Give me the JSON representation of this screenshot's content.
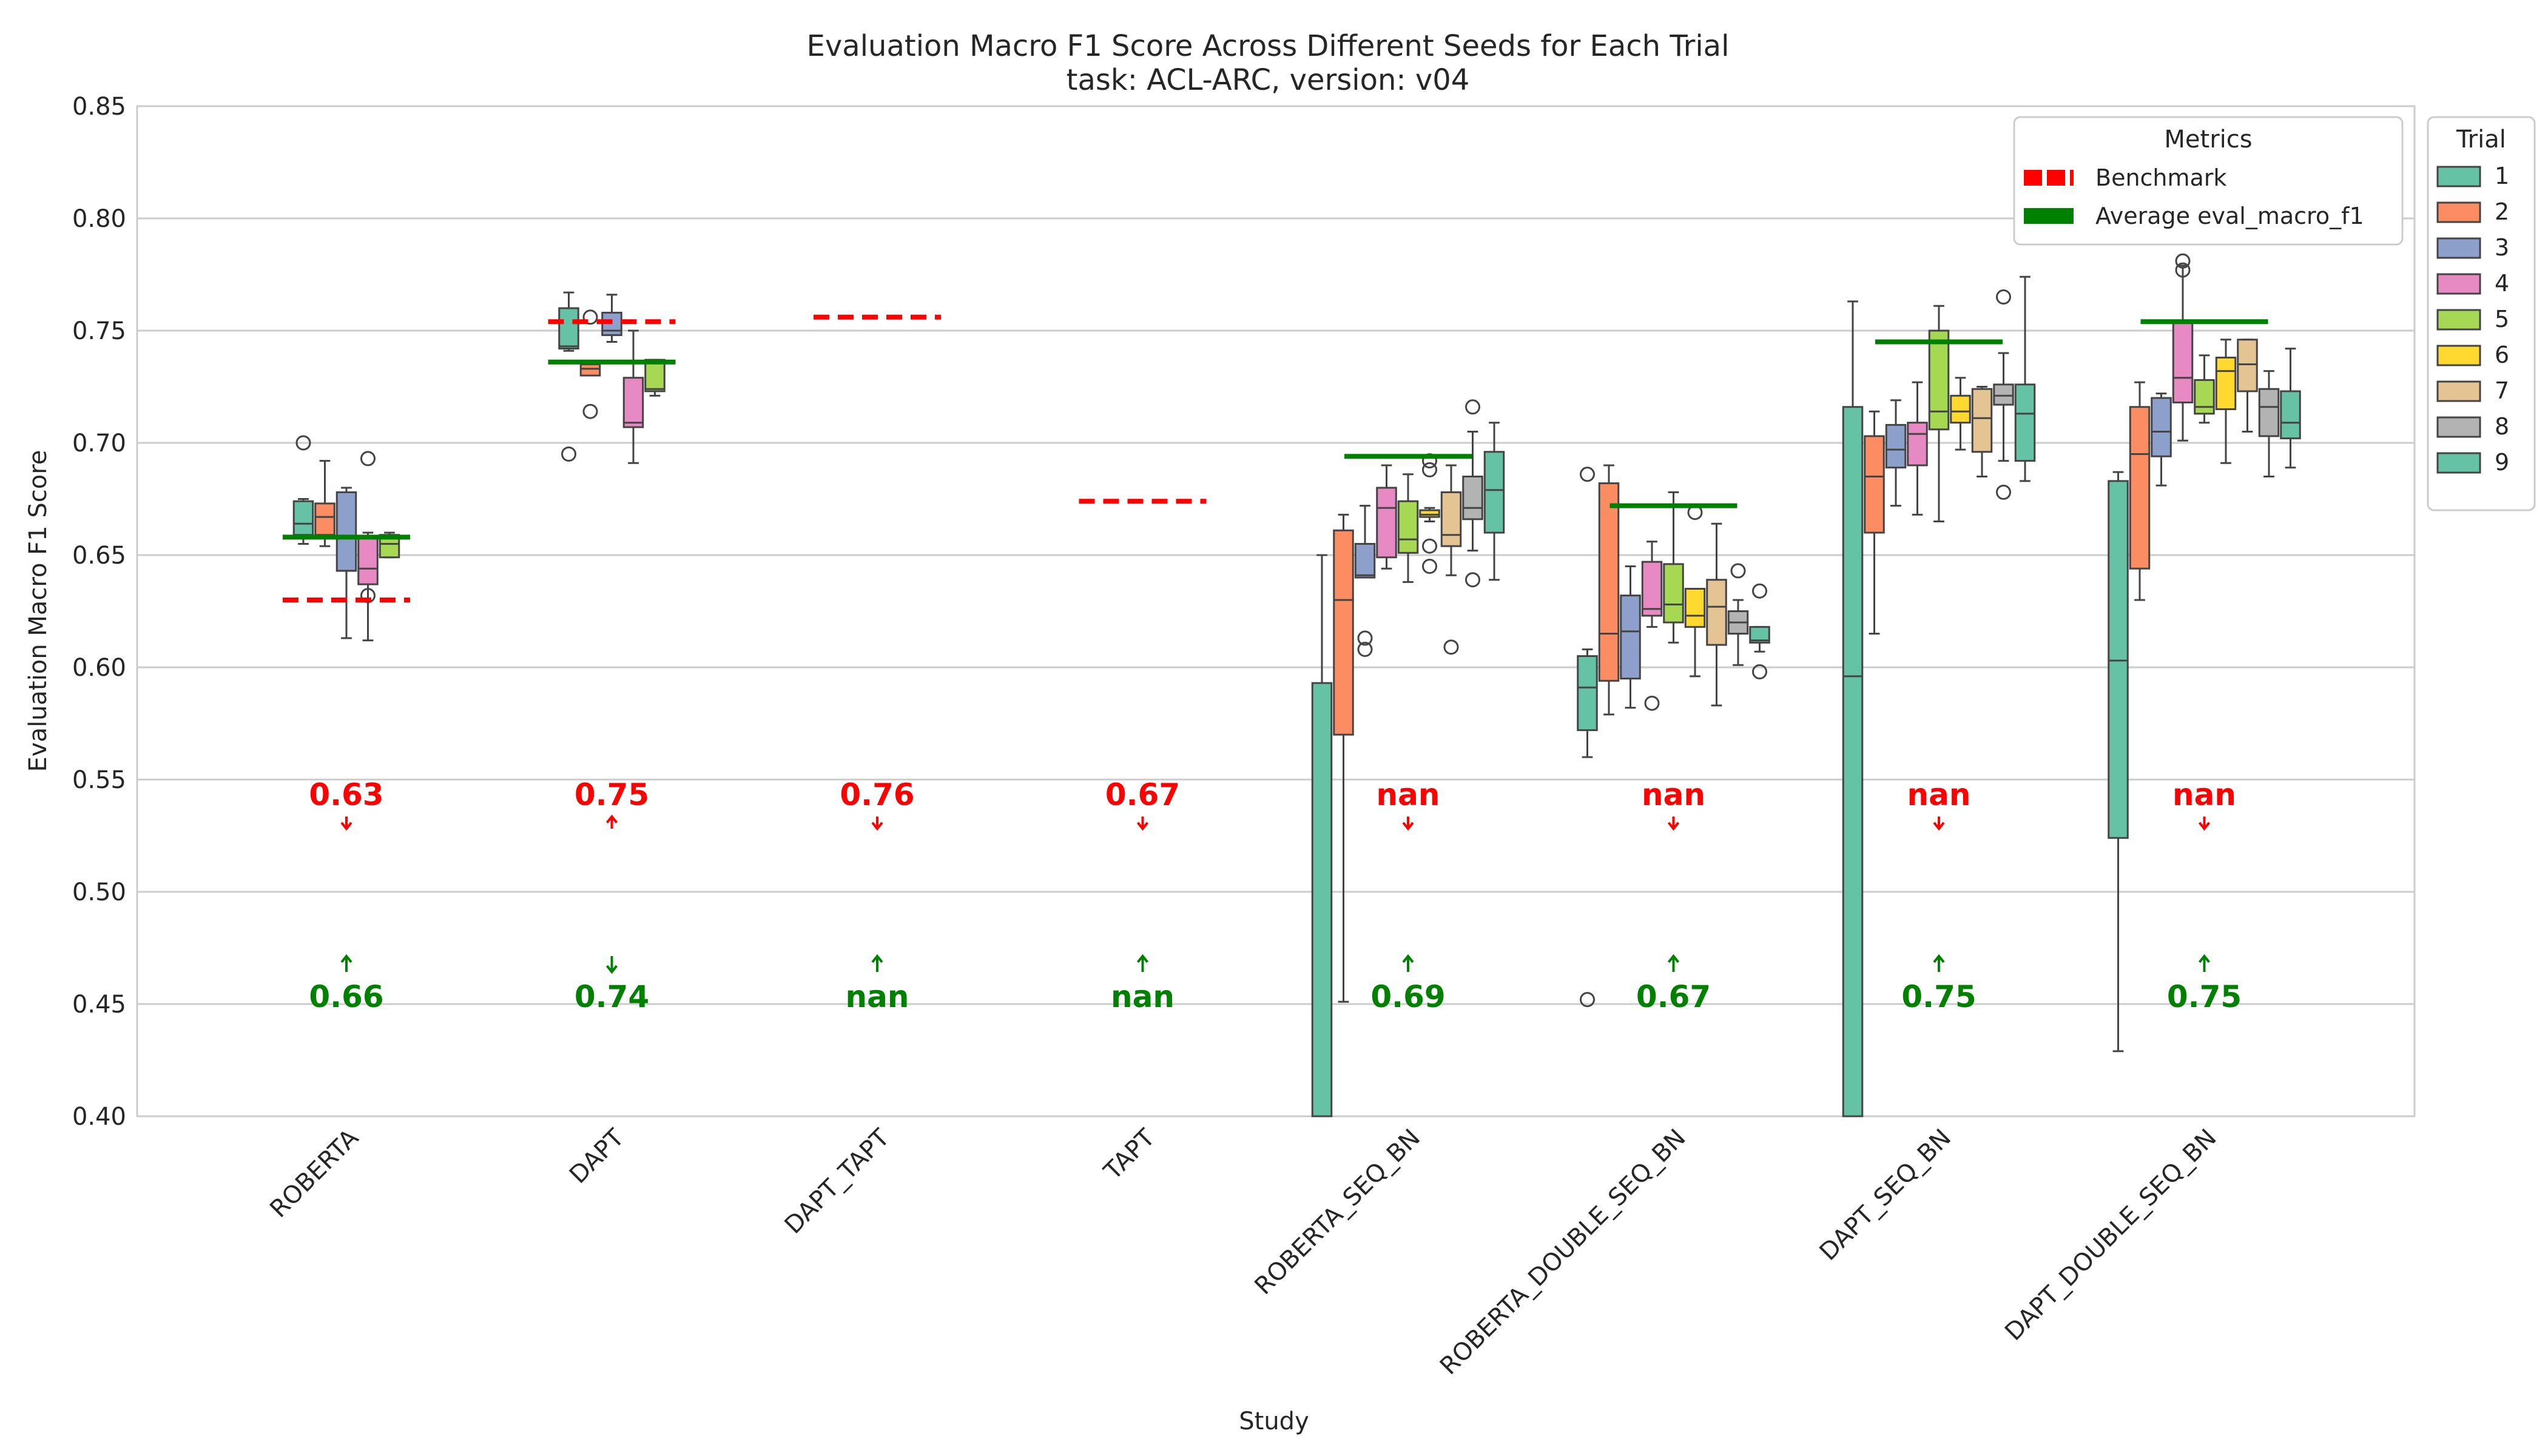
{
  "chart_data": {
    "type": "box",
    "title": "Evaluation Macro F1 Score Across Different Seeds for Each Trial",
    "subtitle": "task: ACL-ARC, version: v04",
    "xlabel": "Study",
    "ylabel": "Evaluation Macro F1 Score",
    "ylim": [
      0.4,
      0.85
    ],
    "yticks": [
      "0.40",
      "0.45",
      "0.50",
      "0.55",
      "0.60",
      "0.65",
      "0.70",
      "0.75",
      "0.80",
      "0.85"
    ],
    "grid": true,
    "categories": [
      "ROBERTA",
      "DAPT",
      "DAPT_TAPT",
      "TAPT",
      "ROBERTA_SEQ_BN",
      "ROBERTA_DOUBLE_SEQ_BN",
      "DAPT_SEQ_BN",
      "DAPT_DOUBLE_SEQ_BN"
    ],
    "trial_legend": {
      "title": "Trial",
      "placement": "outside-right",
      "items": [
        {
          "label": "1",
          "color": "#66c2a5"
        },
        {
          "label": "2",
          "color": "#fc8d62"
        },
        {
          "label": "3",
          "color": "#8da0cb"
        },
        {
          "label": "4",
          "color": "#e78ac3"
        },
        {
          "label": "5",
          "color": "#a6d854"
        },
        {
          "label": "6",
          "color": "#ffd92f"
        },
        {
          "label": "7",
          "color": "#e5c494"
        },
        {
          "label": "8",
          "color": "#b3b3b3"
        },
        {
          "label": "9",
          "color": "#66c2a5"
        }
      ]
    },
    "metrics_legend": {
      "title": "Metrics",
      "placement": "top-right",
      "items": [
        {
          "label": "Benchmark",
          "color": "#ff0000"
        },
        {
          "label": "Average eval_macro_f1",
          "color": "#008000"
        }
      ]
    },
    "benchmark": [
      0.63,
      0.754,
      0.756,
      0.674,
      null,
      null,
      null,
      null
    ],
    "average": [
      0.658,
      0.736,
      null,
      null,
      0.694,
      0.672,
      0.745,
      0.754
    ],
    "benchmark_labels": [
      "0.63",
      "0.75",
      "0.76",
      "0.67",
      "nan",
      "nan",
      "nan",
      "nan"
    ],
    "average_labels": [
      "0.66",
      "0.74",
      "nan",
      "nan",
      "0.69",
      "0.67",
      "0.75",
      "0.75"
    ],
    "benchmark_arrow": [
      "down",
      "up",
      "down",
      "down",
      "down",
      "down",
      "down",
      "down"
    ],
    "average_arrow": [
      "up",
      "down",
      "up",
      "up",
      "up",
      "up",
      "up",
      "up"
    ],
    "boxes": [
      [
        {
          "trial": 1,
          "lo": 0.655,
          "q1": 0.659,
          "med": 0.664,
          "q3": 0.674,
          "hi": 0.675,
          "fliers": [
            0.7
          ]
        },
        {
          "trial": 2,
          "lo": 0.654,
          "q1": 0.659,
          "med": 0.667,
          "q3": 0.673,
          "hi": 0.692,
          "fliers": []
        },
        {
          "trial": 3,
          "lo": 0.613,
          "q1": 0.643,
          "med": 0.643,
          "q3": 0.678,
          "hi": 0.68,
          "fliers": []
        },
        {
          "trial": 4,
          "lo": 0.612,
          "q1": 0.637,
          "med": 0.644,
          "q3": 0.658,
          "hi": 0.66,
          "fliers": [
            0.693,
            0.632
          ]
        },
        {
          "trial": 5,
          "lo": 0.649,
          "q1": 0.649,
          "med": 0.655,
          "q3": 0.659,
          "hi": 0.66,
          "fliers": []
        }
      ],
      [
        {
          "trial": 1,
          "lo": 0.741,
          "q1": 0.742,
          "med": 0.743,
          "q3": 0.76,
          "hi": 0.767,
          "fliers": [
            0.695
          ]
        },
        {
          "trial": 2,
          "lo": 0.73,
          "q1": 0.73,
          "med": 0.733,
          "q3": 0.735,
          "hi": 0.735,
          "fliers": [
            0.714,
            0.756
          ]
        },
        {
          "trial": 3,
          "lo": 0.745,
          "q1": 0.748,
          "med": 0.75,
          "q3": 0.758,
          "hi": 0.766,
          "fliers": []
        },
        {
          "trial": 4,
          "lo": 0.691,
          "q1": 0.707,
          "med": 0.709,
          "q3": 0.729,
          "hi": 0.75,
          "fliers": []
        },
        {
          "trial": 5,
          "lo": 0.721,
          "q1": 0.723,
          "med": 0.724,
          "q3": 0.737,
          "hi": 0.737,
          "fliers": []
        }
      ],
      [],
      [],
      [
        {
          "trial": 1,
          "lo": 0.4,
          "q1": 0.4,
          "med": 0.4,
          "q3": 0.593,
          "hi": 0.65,
          "fliers": []
        },
        {
          "trial": 2,
          "lo": 0.451,
          "q1": 0.57,
          "med": 0.63,
          "q3": 0.661,
          "hi": 0.668,
          "fliers": []
        },
        {
          "trial": 3,
          "lo": 0.64,
          "q1": 0.64,
          "med": 0.641,
          "q3": 0.655,
          "hi": 0.672,
          "fliers": [
            0.613,
            0.608
          ]
        },
        {
          "trial": 4,
          "lo": 0.644,
          "q1": 0.649,
          "med": 0.671,
          "q3": 0.68,
          "hi": 0.69,
          "fliers": []
        },
        {
          "trial": 5,
          "lo": 0.638,
          "q1": 0.651,
          "med": 0.657,
          "q3": 0.674,
          "hi": 0.686,
          "fliers": []
        },
        {
          "trial": 6,
          "lo": 0.665,
          "q1": 0.667,
          "med": 0.668,
          "q3": 0.67,
          "hi": 0.671,
          "fliers": [
            0.692,
            0.688,
            0.654,
            0.645
          ]
        },
        {
          "trial": 7,
          "lo": 0.641,
          "q1": 0.654,
          "med": 0.659,
          "q3": 0.678,
          "hi": 0.69,
          "fliers": [
            0.609
          ]
        },
        {
          "trial": 8,
          "lo": 0.652,
          "q1": 0.666,
          "med": 0.671,
          "q3": 0.685,
          "hi": 0.705,
          "fliers": [
            0.716,
            0.639
          ]
        },
        {
          "trial": 9,
          "lo": 0.639,
          "q1": 0.66,
          "med": 0.679,
          "q3": 0.696,
          "hi": 0.709,
          "fliers": []
        }
      ],
      [
        {
          "trial": 1,
          "lo": 0.56,
          "q1": 0.572,
          "med": 0.591,
          "q3": 0.605,
          "hi": 0.608,
          "fliers": [
            0.686,
            0.452
          ]
        },
        {
          "trial": 2,
          "lo": 0.579,
          "q1": 0.594,
          "med": 0.615,
          "q3": 0.682,
          "hi": 0.69,
          "fliers": []
        },
        {
          "trial": 3,
          "lo": 0.582,
          "q1": 0.595,
          "med": 0.616,
          "q3": 0.632,
          "hi": 0.645,
          "fliers": []
        },
        {
          "trial": 4,
          "lo": 0.618,
          "q1": 0.623,
          "med": 0.626,
          "q3": 0.647,
          "hi": 0.656,
          "fliers": [
            0.584
          ]
        },
        {
          "trial": 5,
          "lo": 0.611,
          "q1": 0.62,
          "med": 0.628,
          "q3": 0.646,
          "hi": 0.678,
          "fliers": []
        },
        {
          "trial": 6,
          "lo": 0.596,
          "q1": 0.618,
          "med": 0.623,
          "q3": 0.635,
          "hi": 0.635,
          "fliers": [
            0.669
          ]
        },
        {
          "trial": 7,
          "lo": 0.583,
          "q1": 0.61,
          "med": 0.627,
          "q3": 0.639,
          "hi": 0.664,
          "fliers": []
        },
        {
          "trial": 8,
          "lo": 0.601,
          "q1": 0.615,
          "med": 0.62,
          "q3": 0.625,
          "hi": 0.63,
          "fliers": [
            0.643
          ]
        },
        {
          "trial": 9,
          "lo": 0.607,
          "q1": 0.611,
          "med": 0.612,
          "q3": 0.618,
          "hi": 0.618,
          "fliers": [
            0.634,
            0.598
          ]
        }
      ],
      [
        {
          "trial": 1,
          "lo": 0.4,
          "q1": 0.4,
          "med": 0.596,
          "q3": 0.716,
          "hi": 0.763,
          "fliers": []
        },
        {
          "trial": 2,
          "lo": 0.615,
          "q1": 0.66,
          "med": 0.685,
          "q3": 0.703,
          "hi": 0.714,
          "fliers": []
        },
        {
          "trial": 3,
          "lo": 0.672,
          "q1": 0.689,
          "med": 0.697,
          "q3": 0.708,
          "hi": 0.719,
          "fliers": []
        },
        {
          "trial": 4,
          "lo": 0.668,
          "q1": 0.69,
          "med": 0.704,
          "q3": 0.709,
          "hi": 0.727,
          "fliers": []
        },
        {
          "trial": 5,
          "lo": 0.665,
          "q1": 0.706,
          "med": 0.714,
          "q3": 0.75,
          "hi": 0.761,
          "fliers": []
        },
        {
          "trial": 6,
          "lo": 0.697,
          "q1": 0.709,
          "med": 0.714,
          "q3": 0.721,
          "hi": 0.729,
          "fliers": []
        },
        {
          "trial": 7,
          "lo": 0.685,
          "q1": 0.696,
          "med": 0.711,
          "q3": 0.724,
          "hi": 0.725,
          "fliers": []
        },
        {
          "trial": 8,
          "lo": 0.692,
          "q1": 0.717,
          "med": 0.721,
          "q3": 0.726,
          "hi": 0.74,
          "fliers": [
            0.765,
            0.678
          ]
        },
        {
          "trial": 9,
          "lo": 0.683,
          "q1": 0.692,
          "med": 0.713,
          "q3": 0.726,
          "hi": 0.774,
          "fliers": []
        }
      ],
      [
        {
          "trial": 1,
          "lo": 0.429,
          "q1": 0.524,
          "med": 0.603,
          "q3": 0.683,
          "hi": 0.687,
          "fliers": []
        },
        {
          "trial": 2,
          "lo": 0.63,
          "q1": 0.644,
          "med": 0.695,
          "q3": 0.716,
          "hi": 0.727,
          "fliers": []
        },
        {
          "trial": 3,
          "lo": 0.681,
          "q1": 0.694,
          "med": 0.705,
          "q3": 0.72,
          "hi": 0.722,
          "fliers": []
        },
        {
          "trial": 4,
          "lo": 0.701,
          "q1": 0.718,
          "med": 0.729,
          "q3": 0.754,
          "hi": 0.779,
          "fliers": [
            0.781,
            0.777
          ]
        },
        {
          "trial": 5,
          "lo": 0.709,
          "q1": 0.713,
          "med": 0.716,
          "q3": 0.728,
          "hi": 0.739,
          "fliers": []
        },
        {
          "trial": 6,
          "lo": 0.691,
          "q1": 0.715,
          "med": 0.732,
          "q3": 0.738,
          "hi": 0.746,
          "fliers": []
        },
        {
          "trial": 7,
          "lo": 0.705,
          "q1": 0.723,
          "med": 0.735,
          "q3": 0.746,
          "hi": 0.746,
          "fliers": []
        },
        {
          "trial": 8,
          "lo": 0.685,
          "q1": 0.703,
          "med": 0.716,
          "q3": 0.724,
          "hi": 0.732,
          "fliers": []
        },
        {
          "trial": 9,
          "lo": 0.689,
          "q1": 0.702,
          "med": 0.709,
          "q3": 0.723,
          "hi": 0.742,
          "fliers": []
        }
      ]
    ]
  }
}
